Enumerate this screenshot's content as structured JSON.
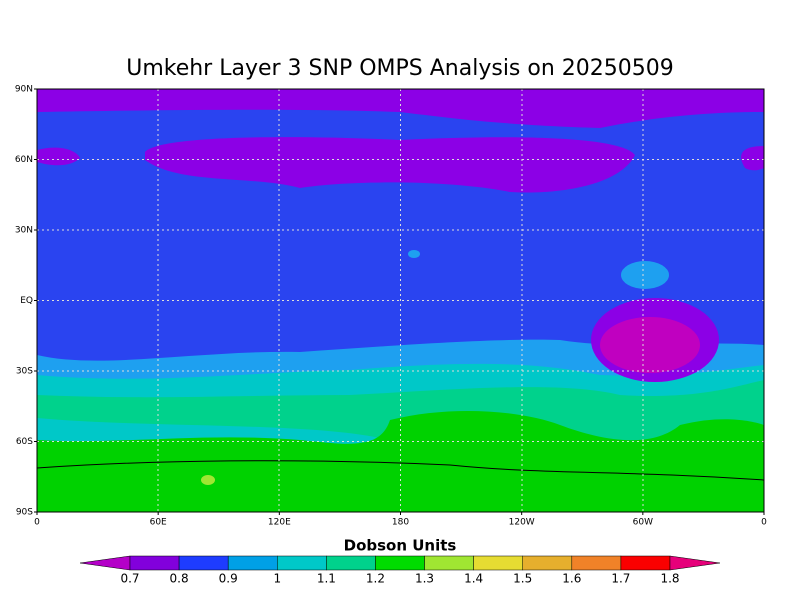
{
  "title": "Umkehr Layer 3 SNP OMPS Analysis on 20250509",
  "lat_labels": [
    "90N",
    "60N",
    "30N",
    "EQ",
    "30S",
    "60S",
    "90S"
  ],
  "lon_labels": [
    "0",
    "60E",
    "120E",
    "180",
    "120W",
    "60W",
    "0"
  ],
  "colorbar": {
    "title": "Dobson Units",
    "labels": [
      0.7,
      0.8,
      0.9,
      1,
      1.1,
      1.2,
      1.3,
      1.4,
      1.5,
      1.6,
      1.7,
      1.8
    ],
    "colors": [
      "#b400c8",
      "#8200dc",
      "#1e3cff",
      "#00a0e6",
      "#00c8c8",
      "#00d28c",
      "#00dc00",
      "#a0e632",
      "#e6dc32",
      "#e6af2d",
      "#f08228",
      "#fa0000",
      "#e6007a"
    ]
  }
}
